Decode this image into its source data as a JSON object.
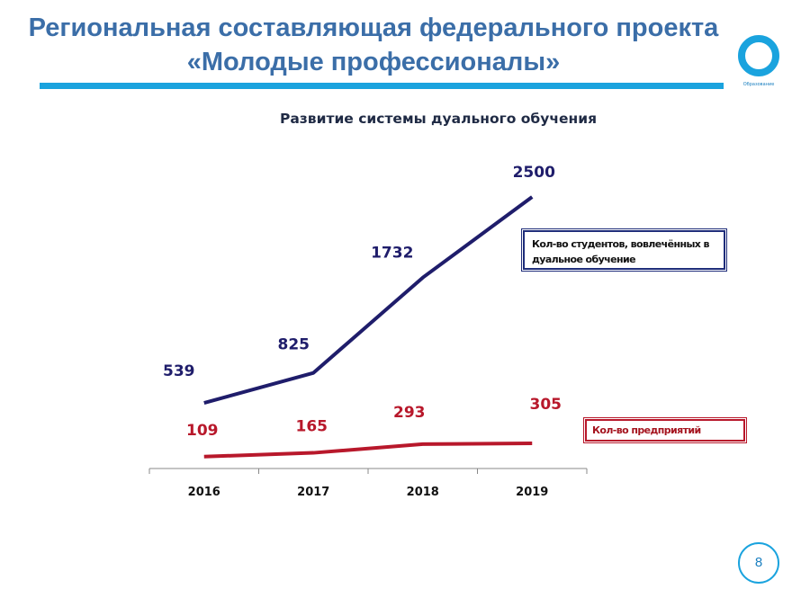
{
  "header": {
    "title_line1": "Региональная составляющая федерального проекта",
    "title_line2": "«Молодые профессионалы»",
    "logo_text": "Образование",
    "bar_color": "#1aa3de"
  },
  "page_number": "8",
  "chart_data": {
    "type": "line",
    "title": "Развитие системы дуального обучения",
    "categories": [
      "2016",
      "2017",
      "2018",
      "2019"
    ],
    "series": [
      {
        "name": "Кол-во студентов, вовлечённых в дуальное обучение",
        "values": [
          539,
          825,
          1732,
          2500
        ],
        "color": "#1f1d6b"
      },
      {
        "name": "Кол-во предприятий",
        "values": [
          109,
          165,
          293,
          305
        ],
        "color": "#b8182b"
      }
    ],
    "ylim": [
      0,
      2600
    ],
    "grid": false,
    "legend_position": "right"
  }
}
